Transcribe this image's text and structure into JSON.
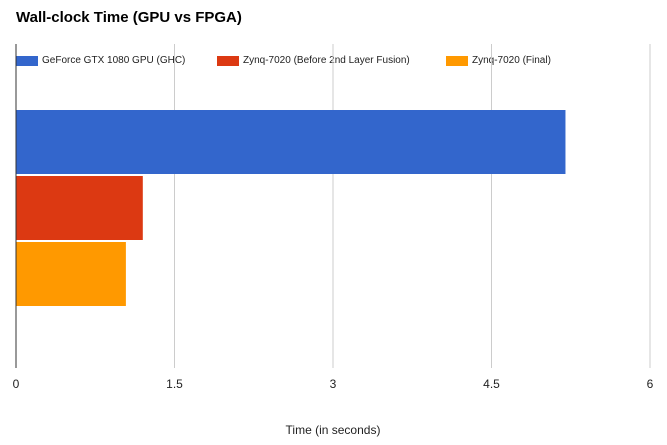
{
  "chart_data": {
    "type": "bar",
    "orientation": "horizontal",
    "title": "Wall-clock Time (GPU vs FPGA)",
    "xlabel": "Time (in seconds)",
    "ylabel": "",
    "xlim": [
      0,
      6
    ],
    "xticks": [
      0,
      1.5,
      3,
      4.5,
      6
    ],
    "xtick_labels": [
      "0",
      "1.5",
      "3",
      "4.5",
      "6"
    ],
    "grid": true,
    "legend_position": "top",
    "categories": [
      ""
    ],
    "series": [
      {
        "name": "GeForce GTX 1080 GPU (GHC)",
        "color": "#3366cc",
        "values": [
          5.2
        ]
      },
      {
        "name": "Zynq-7020 (Before 2nd Layer Fusion)",
        "color": "#dc3912",
        "values": [
          1.2
        ]
      },
      {
        "name": "Zynq-7020 (Final)",
        "color": "#ff9900",
        "values": [
          1.04
        ]
      }
    ]
  }
}
